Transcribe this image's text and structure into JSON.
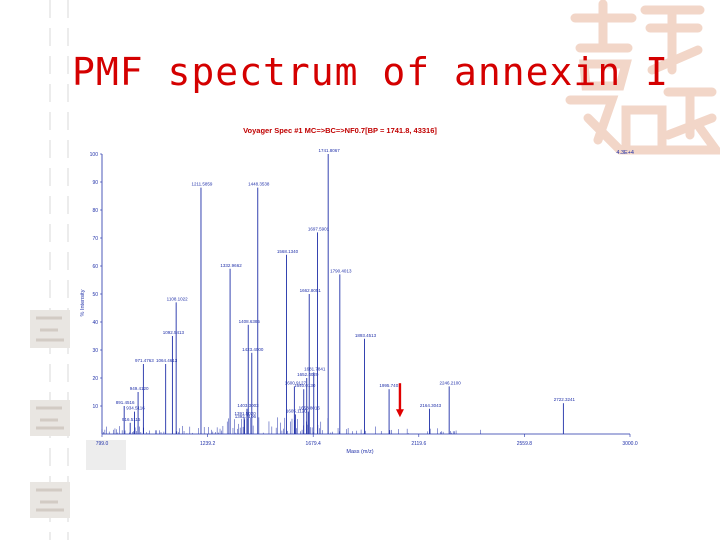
{
  "slide": {
    "title": "PMF spectrum of annexin I",
    "decoration": "chinese-calligraphy-watermark"
  },
  "colors": {
    "title": "#d40000",
    "spectrum": "#1f2fa8",
    "arrow": "#e00000",
    "deco": "#f2d6c8"
  },
  "chart_data": {
    "type": "line",
    "title": "Voyager Spec #1 MC=>BC=>NF0.7[BP = 1741.8, 43316]",
    "xlabel": "Mass (m/z)",
    "ylabel": "% Intensity",
    "xlim": [
      799.0,
      3000.0
    ],
    "ylim": [
      0,
      100
    ],
    "x_ticks": [
      799.0,
      1239.2,
      1679.4,
      2119.6,
      2559.8,
      3000.0
    ],
    "x_tick_labels": [
      "799.0",
      "1239.2",
      "1679.4",
      "2119.6",
      "2559.8",
      "3000.0"
    ],
    "y_ticks": [
      10,
      20,
      30,
      40,
      50,
      60,
      70,
      80,
      90,
      100
    ],
    "top_right_label": "4.3E+4",
    "base_peak_label": "1741.8067",
    "peaks": [
      {
        "mz": 891.45,
        "intensity": 10,
        "label": "891.4516"
      },
      {
        "mz": 916.5,
        "intensity": 4,
        "label": "916.5116"
      },
      {
        "mz": 934.5,
        "intensity": 8,
        "label": "934.5116"
      },
      {
        "mz": 949.4,
        "intensity": 15,
        "label": "949.4120"
      },
      {
        "mz": 971.5,
        "intensity": 25,
        "label": "971.4763"
      },
      {
        "mz": 1064.4,
        "intensity": 25,
        "label": "1064.4613"
      },
      {
        "mz": 1092.5,
        "intensity": 35,
        "label": "1092.5413"
      },
      {
        "mz": 1108.1,
        "intensity": 47,
        "label": "1108.1022"
      },
      {
        "mz": 1211.6,
        "intensity": 88,
        "label": "1211.5859"
      },
      {
        "mz": 1332.9,
        "intensity": 59,
        "label": "1332.9662"
      },
      {
        "mz": 1391.5,
        "intensity": 6,
        "label": "1391.5020"
      },
      {
        "mz": 1392.7,
        "intensity": 5,
        "label": "1392.7106"
      },
      {
        "mz": 1403.3,
        "intensity": 9,
        "label": "1403.3003"
      },
      {
        "mz": 1408.6,
        "intensity": 39,
        "label": "1408.6385"
      },
      {
        "mz": 1423.4,
        "intensity": 29,
        "label": "1423.4000"
      },
      {
        "mz": 1448.3,
        "intensity": 88,
        "label": "1448.3538"
      },
      {
        "mz": 1568.1,
        "intensity": 64,
        "label": "1568.1340"
      },
      {
        "mz": 1600.9,
        "intensity": 17,
        "label": "1600.9127"
      },
      {
        "mz": 1605.1,
        "intensity": 7,
        "label": "1605.1120"
      },
      {
        "mz": 1640.0,
        "intensity": 16,
        "label": "1640.0130"
      },
      {
        "mz": 1652.4,
        "intensity": 20,
        "label": "1652.4020"
      },
      {
        "mz": 1658.8,
        "intensity": 8,
        "label": "1658.8016"
      },
      {
        "mz": 1662.8,
        "intensity": 50,
        "label": "1662.8051"
      },
      {
        "mz": 1681.7,
        "intensity": 22,
        "label": "1681.7841"
      },
      {
        "mz": 1697.5,
        "intensity": 72,
        "label": "1697.5901"
      },
      {
        "mz": 1741.8,
        "intensity": 100,
        "label": "1741.8067"
      },
      {
        "mz": 1790.4,
        "intensity": 57,
        "label": "1790.4013"
      },
      {
        "mz": 1893.4,
        "intensity": 34,
        "label": "1893.4513"
      },
      {
        "mz": 1995.7,
        "intensity": 16,
        "label": "1995.7401"
      },
      {
        "mz": 2164.3,
        "intensity": 9,
        "label": "2164.3043"
      },
      {
        "mz": 2246.2,
        "intensity": 17,
        "label": "2246.2100"
      },
      {
        "mz": 2722.3,
        "intensity": 11,
        "label": "2722.3241"
      }
    ],
    "annotation": {
      "type": "arrow",
      "target_mz": 2041.0,
      "target_intensity": 4,
      "color": "#e00000"
    }
  }
}
